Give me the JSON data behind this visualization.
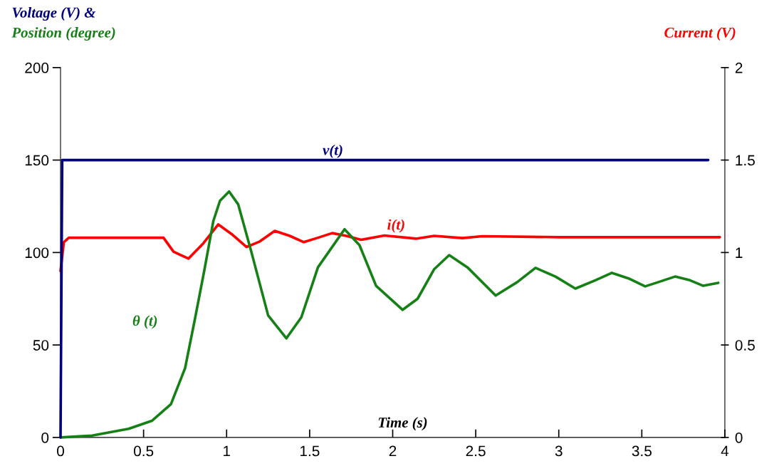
{
  "chart_data": {
    "type": "line",
    "xlabel": "Time (s)",
    "ylabel": "Voltage (V) &\nPosition (degree)",
    "y2label": "Current (V)",
    "xlim": [
      0,
      4
    ],
    "xticks": [
      0,
      0.5,
      1,
      1.5,
      2,
      2.5,
      3,
      3.5,
      4
    ],
    "ylim": [
      0,
      200
    ],
    "yticks": [
      0,
      50,
      100,
      150,
      200
    ],
    "y2lim": [
      0,
      2
    ],
    "y2ticks": [
      0,
      0.5,
      1,
      1.5,
      2
    ],
    "grid": false,
    "legend": false,
    "marker": "none",
    "line_style": "solid",
    "series": [
      {
        "name": "v(t)",
        "color": "#000080",
        "x": [
          0,
          0.01,
          1.64,
          3.9
        ],
        "values": [
          0,
          150,
          150,
          150
        ]
      },
      {
        "name": "θ (t)",
        "color": "#158015",
        "x": [
          0,
          0.19,
          0.41,
          0.55,
          0.665,
          0.75,
          0.807,
          0.865,
          0.92,
          0.96,
          1.015,
          1.07,
          1.15,
          1.25,
          1.36,
          1.45,
          1.55,
          1.71,
          1.8,
          1.9,
          2.06,
          2.15,
          2.25,
          2.34,
          2.45,
          2.62,
          2.75,
          2.86,
          2.98,
          3.1,
          3.22,
          3.32,
          3.42,
          3.52,
          3.6,
          3.7,
          3.79,
          3.87,
          3.96
        ],
        "values": [
          0,
          1,
          4.7,
          9,
          18,
          37.5,
          63,
          90,
          117,
          128,
          133,
          126,
          100,
          66,
          53.6,
          65,
          92,
          112.6,
          104,
          82,
          69,
          75,
          91,
          98.6,
          92,
          76.7,
          84,
          91.7,
          87,
          80.5,
          85,
          89,
          86,
          81.7,
          84,
          87,
          85,
          82,
          83.6
        ]
      },
      {
        "name": "i(t)",
        "color": "#ff0000",
        "axis": "y2",
        "x": [
          0,
          0.02,
          0.05,
          0.3,
          0.62,
          0.68,
          0.77,
          0.86,
          0.95,
          1.03,
          1.12,
          1.2,
          1.29,
          1.38,
          1.465,
          1.55,
          1.636,
          1.72,
          1.81,
          1.95,
          2.14,
          2.25,
          2.42,
          2.54,
          3.0,
          3.5,
          3.97
        ],
        "values": [
          0.9,
          1.056,
          1.08,
          1.08,
          1.08,
          1.005,
          0.967,
          1.05,
          1.152,
          1.1,
          1.03,
          1.06,
          1.117,
          1.09,
          1.056,
          1.08,
          1.105,
          1.09,
          1.069,
          1.092,
          1.075,
          1.09,
          1.078,
          1.088,
          1.083,
          1.083,
          1.083
        ]
      }
    ]
  }
}
